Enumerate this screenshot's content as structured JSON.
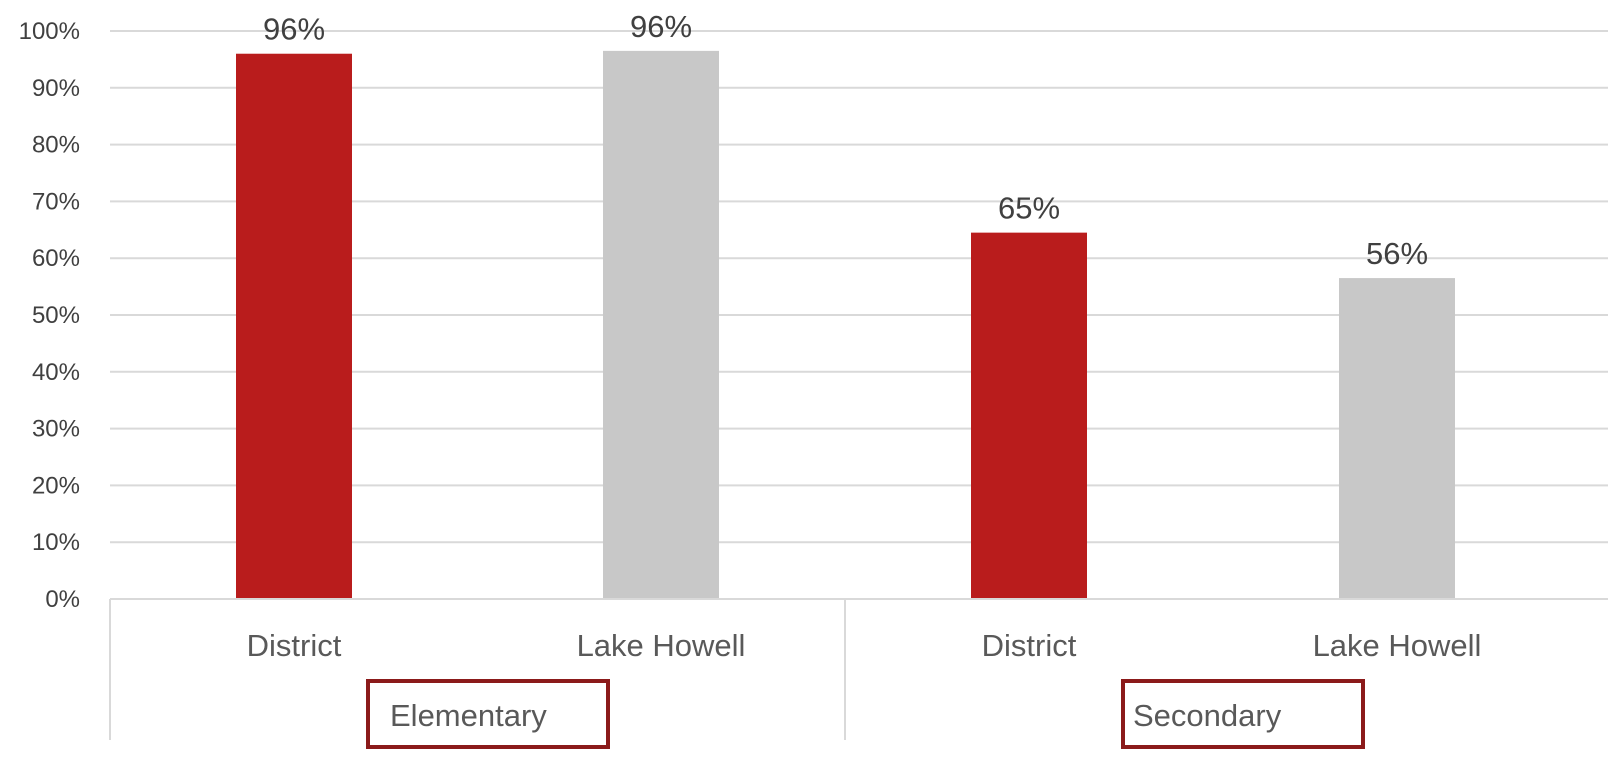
{
  "chart_data": {
    "type": "bar",
    "groups": [
      {
        "name": "Elementary",
        "categories": [
          "District",
          "Lake Howell"
        ],
        "values": [
          96,
          96.5
        ]
      },
      {
        "name": "Secondary",
        "categories": [
          "District",
          "Lake Howell"
        ],
        "values": [
          64.5,
          56.5
        ]
      }
    ],
    "data_labels": [
      "96%",
      "96%",
      "65%",
      "56%"
    ],
    "bar_colors": [
      "#b91c1c",
      "#c8c8c8",
      "#b91c1c",
      "#c8c8c8"
    ],
    "y_ticks": [
      "0%",
      "10%",
      "20%",
      "30%",
      "40%",
      "50%",
      "60%",
      "70%",
      "80%",
      "90%",
      "100%"
    ],
    "ylim": [
      0,
      100
    ],
    "grid": true,
    "title": "",
    "xlabel": "",
    "ylabel": "",
    "group_box_color": "#8b1a1a"
  }
}
